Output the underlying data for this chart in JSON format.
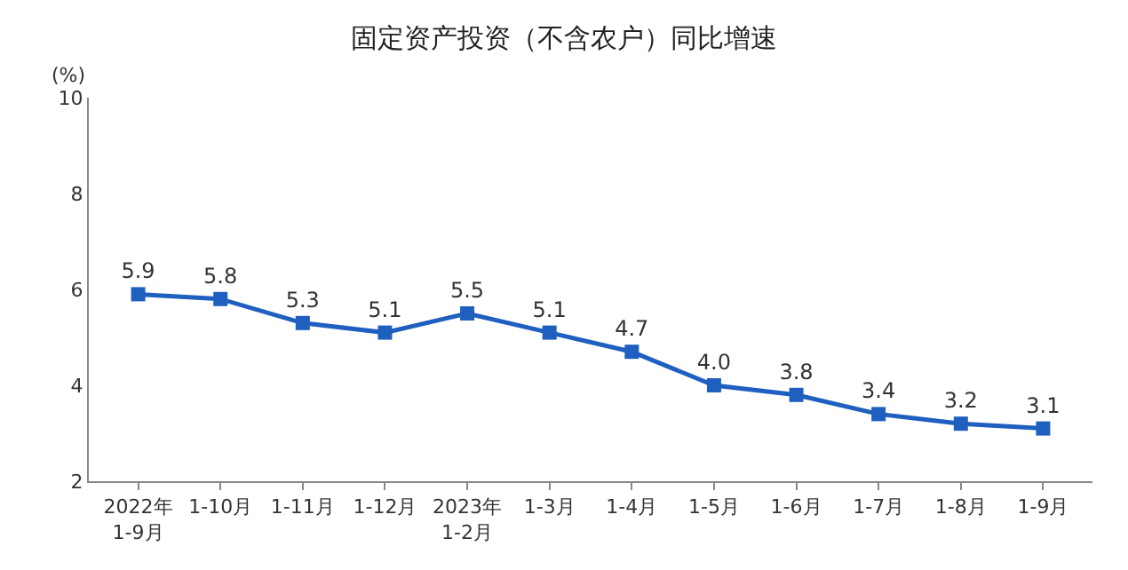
{
  "chart_data": {
    "type": "line",
    "title": "固定资产投资（不含农户）同比增速",
    "ylabel": "(%)",
    "categories": [
      "2022年\n1-9月",
      "1-10月",
      "1-11月",
      "1-12月",
      "2023年\n1-2月",
      "1-3月",
      "1-4月",
      "1-5月",
      "1-6月",
      "1-7月",
      "1-8月",
      "1-9月"
    ],
    "series": [
      {
        "color": "#1f5fbf",
        "values": [
          5.9,
          5.8,
          5.3,
          5.1,
          5.5,
          5.1,
          4.7,
          4.0,
          3.8,
          3.4,
          3.2,
          3.1
        ],
        "value_labels": [
          "5.9",
          "5.8",
          "5.3",
          "5.1",
          "5.5",
          "5.1",
          "4.7",
          "4.0",
          "3.8",
          "3.4",
          "3.2",
          "3.1"
        ]
      }
    ],
    "ylim": [
      2,
      10
    ],
    "yticks": [
      2,
      4,
      6,
      8,
      10
    ],
    "marker": "square",
    "line_style": "solid"
  }
}
